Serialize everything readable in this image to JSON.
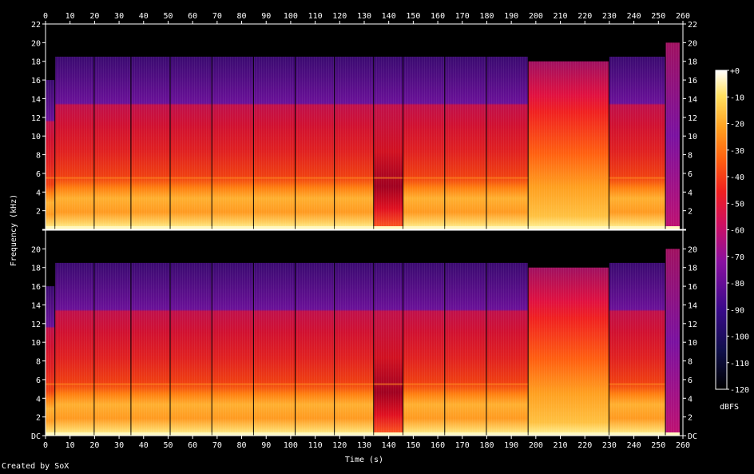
{
  "chart_data": {
    "type": "heatmap",
    "title": "",
    "xlabel": "Time (s)",
    "ylabel": "Frequency (kHz)",
    "colorbar_label": "dBFS",
    "x_ticks": [
      0,
      10,
      20,
      30,
      40,
      50,
      60,
      70,
      80,
      90,
      100,
      110,
      120,
      130,
      140,
      150,
      160,
      170,
      180,
      190,
      200,
      210,
      220,
      230,
      240,
      250,
      260
    ],
    "xlim": [
      0,
      260
    ],
    "y_ticks": [
      "DC",
      "2",
      "4",
      "6",
      "8",
      "10",
      "12",
      "14",
      "16",
      "18",
      "20",
      "22"
    ],
    "ylim": [
      0,
      22
    ],
    "colorbar_ticks": [
      "+0",
      "-10",
      "-20",
      "-30",
      "-40",
      "-50",
      "-60",
      "-70",
      "-80",
      "-90",
      "-100",
      "-110",
      "-120"
    ],
    "colorbar_range": [
      -120,
      0
    ],
    "channels": 2,
    "segments": [
      {
        "start": 0,
        "end": 4,
        "cutoff_khz": 16.0,
        "level": "loud"
      },
      {
        "start": 4,
        "end": 20,
        "cutoff_khz": 18.5,
        "level": "loud"
      },
      {
        "start": 20,
        "end": 35,
        "cutoff_khz": 18.5,
        "level": "loud"
      },
      {
        "start": 35,
        "end": 51,
        "cutoff_khz": 18.5,
        "level": "loud"
      },
      {
        "start": 51,
        "end": 68,
        "cutoff_khz": 18.5,
        "level": "loud"
      },
      {
        "start": 68,
        "end": 85,
        "cutoff_khz": 18.5,
        "level": "loud"
      },
      {
        "start": 85,
        "end": 102,
        "cutoff_khz": 18.5,
        "level": "loud"
      },
      {
        "start": 102,
        "end": 118,
        "cutoff_khz": 18.5,
        "level": "loud"
      },
      {
        "start": 118,
        "end": 134,
        "cutoff_khz": 18.5,
        "level": "loud"
      },
      {
        "start": 134,
        "end": 146,
        "cutoff_khz": 18.5,
        "level": "quiet"
      },
      {
        "start": 146,
        "end": 163,
        "cutoff_khz": 18.5,
        "level": "loud"
      },
      {
        "start": 163,
        "end": 180,
        "cutoff_khz": 18.5,
        "level": "loud"
      },
      {
        "start": 180,
        "end": 197,
        "cutoff_khz": 18.5,
        "level": "loud"
      },
      {
        "start": 197,
        "end": 230,
        "cutoff_khz": 18.0,
        "level": "dense"
      },
      {
        "start": 230,
        "end": 253,
        "cutoff_khz": 18.5,
        "level": "loud"
      },
      {
        "start": 253,
        "end": 259,
        "cutoff_khz": 20.0,
        "level": "fade"
      }
    ]
  },
  "footer": {
    "credit": "Created by SoX"
  }
}
